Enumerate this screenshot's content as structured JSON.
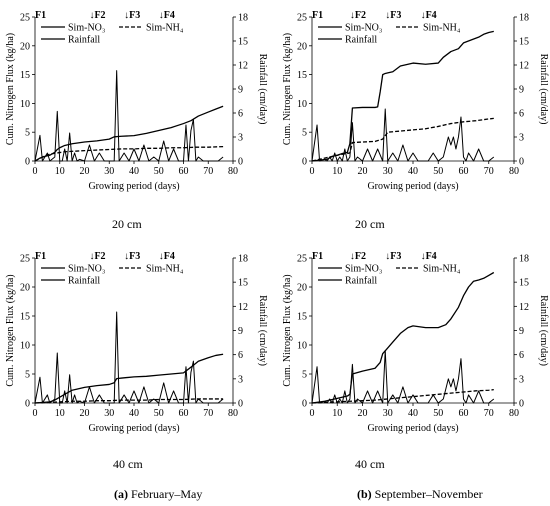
{
  "chart_data": [
    {
      "type": "line",
      "id": "a20",
      "caption": "20 cm",
      "xlabel": "Growing period (days)",
      "ylabel": "Cum. Nitrogen Flux (kg/ha)",
      "ylabel2": "Rainfall (cm/day)",
      "xlim": [
        0,
        80
      ],
      "ylim": [
        0,
        25
      ],
      "y2lim": [
        0,
        18
      ],
      "xticks": [
        0,
        10,
        20,
        30,
        40,
        50,
        60,
        70,
        80
      ],
      "yticks": [
        0,
        5,
        10,
        15,
        20,
        25
      ],
      "y2ticks": [
        0,
        3,
        6,
        9,
        12,
        15,
        18
      ],
      "fertilizer": [
        {
          "label": "F1",
          "x": 0,
          "arrow": ""
        },
        {
          "label": "F2",
          "x": 22,
          "arrow": "↓"
        },
        {
          "label": "F3",
          "x": 36,
          "arrow": "↓"
        },
        {
          "label": "F4",
          "x": 50,
          "arrow": "↓"
        }
      ],
      "legend": {
        "no3": "Sim-NO₃",
        "nh4": "Sim-NH₄",
        "rain": "Rainfall"
      },
      "series": [
        {
          "key": "no3",
          "axis": "left",
          "style": "solid",
          "x": [
            0,
            2,
            4,
            6,
            8,
            9,
            10,
            12,
            15,
            20,
            25,
            30,
            32,
            35,
            40,
            45,
            50,
            55,
            60,
            63,
            66,
            70,
            73,
            76
          ],
          "y": [
            0,
            0.5,
            0.8,
            1,
            1.5,
            2,
            2.3,
            2.7,
            3,
            3.3,
            3.5,
            3.8,
            4.2,
            4.3,
            4.4,
            4.8,
            5.3,
            5.8,
            6.5,
            7,
            7.8,
            8.5,
            9,
            9.5
          ]
        },
        {
          "key": "nh4",
          "axis": "left",
          "style": "dashed",
          "x": [
            0,
            3,
            6,
            9,
            12,
            16,
            20,
            25,
            30,
            35,
            40,
            45,
            50,
            55,
            60,
            65,
            70,
            76
          ],
          "y": [
            0,
            0.7,
            1.2,
            1.4,
            1.6,
            1.7,
            1.8,
            1.9,
            2,
            2.1,
            2.1,
            2.2,
            2.2,
            2.3,
            2.3,
            2.4,
            2.4,
            2.5
          ]
        },
        {
          "key": "rain",
          "axis": "right",
          "style": "solid",
          "x": [
            0,
            2,
            3,
            5,
            6,
            8,
            9,
            10,
            11,
            12,
            13,
            14,
            15,
            16,
            17,
            18,
            20,
            22,
            24,
            26,
            28,
            29,
            31,
            32,
            33,
            34,
            36,
            38,
            40,
            42,
            44,
            46,
            48,
            50,
            52,
            54,
            56,
            58,
            60,
            61,
            62,
            63,
            64,
            65,
            66,
            68,
            70,
            72,
            74,
            76
          ],
          "y": [
            0,
            3.2,
            0,
            1,
            0,
            0.5,
            6.2,
            0,
            0,
            1.5,
            0,
            3.5,
            0,
            1,
            0,
            0.2,
            0,
            2,
            0,
            1,
            0,
            0,
            0,
            0,
            11.3,
            0,
            1,
            0,
            1.5,
            0,
            2,
            0,
            0.5,
            0,
            2.5,
            0,
            1.5,
            0,
            0,
            4.5,
            0,
            3.8,
            5.2,
            0,
            0.5,
            0,
            0,
            0,
            0,
            0.5
          ]
        }
      ]
    },
    {
      "type": "line",
      "id": "b20",
      "caption": "20 cm",
      "xlabel": "Growing period (days)",
      "ylabel": "Cum. Nitrogen Flux (kg/ha)",
      "ylabel2": "Rainfall (cm/day)",
      "xlim": [
        0,
        80
      ],
      "ylim": [
        0,
        25
      ],
      "y2lim": [
        0,
        18
      ],
      "xticks": [
        0,
        10,
        20,
        30,
        40,
        50,
        60,
        70,
        80
      ],
      "yticks": [
        0,
        5,
        10,
        15,
        20,
        25
      ],
      "y2ticks": [
        0,
        3,
        6,
        9,
        12,
        15,
        18
      ],
      "fertilizer": [
        {
          "label": "F1",
          "x": 0,
          "arrow": ""
        },
        {
          "label": "F2",
          "x": 15,
          "arrow": "↓"
        },
        {
          "label": "F3",
          "x": 29,
          "arrow": "↓"
        },
        {
          "label": "F4",
          "x": 43,
          "arrow": "↓"
        }
      ],
      "legend": {
        "no3": "Sim-NO₃",
        "nh4": "Sim-NH₄",
        "rain": "Rainfall"
      },
      "series": [
        {
          "key": "no3",
          "axis": "left",
          "style": "solid",
          "x": [
            0,
            6,
            8,
            10,
            12,
            14,
            15,
            16,
            20,
            25,
            26,
            27,
            28,
            29,
            30,
            32,
            35,
            40,
            45,
            50,
            52,
            55,
            58,
            60,
            63,
            66,
            68,
            70,
            72
          ],
          "y": [
            0,
            0.3,
            0.8,
            1,
            1.3,
            1.5,
            3,
            9.2,
            9.3,
            9.3,
            9.4,
            12,
            15,
            15.2,
            15.3,
            15.5,
            16.5,
            17,
            16.8,
            17,
            18,
            19,
            19.5,
            20.5,
            21,
            21.5,
            22,
            22.3,
            22.5
          ]
        },
        {
          "key": "nh4",
          "axis": "left",
          "style": "dashed",
          "x": [
            0,
            5,
            10,
            15,
            16,
            20,
            25,
            28,
            30,
            35,
            40,
            45,
            50,
            55,
            60,
            65,
            70,
            72
          ],
          "y": [
            0,
            0.5,
            1,
            1.4,
            3.2,
            3.3,
            3.4,
            3.8,
            5,
            5.2,
            5.4,
            5.6,
            6,
            6.5,
            6.8,
            7,
            7.3,
            7.4
          ]
        },
        {
          "key": "rain",
          "axis": "right",
          "style": "solid",
          "x": [
            0,
            2,
            3,
            5,
            6,
            7,
            8,
            9,
            10,
            11,
            12,
            13,
            14,
            15,
            16,
            17,
            18,
            20,
            22,
            24,
            26,
            28,
            29,
            30,
            32,
            34,
            36,
            38,
            40,
            42,
            44,
            46,
            48,
            50,
            52,
            54,
            55,
            56,
            57,
            58,
            59,
            60,
            61,
            62,
            64,
            66,
            68,
            70,
            72
          ],
          "y": [
            0,
            4.5,
            0,
            0.2,
            0,
            0.5,
            0,
            1,
            0,
            0.5,
            0,
            1.5,
            0,
            0.5,
            4.8,
            0,
            0.5,
            0,
            1.5,
            0,
            1.5,
            0,
            6.5,
            0,
            1,
            0,
            2,
            0,
            1,
            0,
            0,
            0,
            1,
            0,
            0.5,
            3,
            2,
            3,
            1.5,
            3,
            5.5,
            0.5,
            0,
            1,
            0,
            1.5,
            0,
            0,
            0.5
          ]
        }
      ]
    },
    {
      "type": "line",
      "id": "a40",
      "caption": "40 cm",
      "xlabel": "Growing period (days)",
      "ylabel": "Cum. Nitrogen Flux (kg/ha)",
      "ylabel2": "Rainfall (cm/day)",
      "xlim": [
        0,
        80
      ],
      "ylim": [
        0,
        25
      ],
      "y2lim": [
        0,
        18
      ],
      "xticks": [
        0,
        10,
        20,
        30,
        40,
        50,
        60,
        70,
        80
      ],
      "yticks": [
        0,
        5,
        10,
        15,
        20,
        25
      ],
      "y2ticks": [
        0,
        3,
        6,
        9,
        12,
        15,
        18
      ],
      "fertilizer": [
        {
          "label": "F1",
          "x": 0,
          "arrow": ""
        },
        {
          "label": "F2",
          "x": 22,
          "arrow": "↓"
        },
        {
          "label": "F3",
          "x": 36,
          "arrow": "↓"
        },
        {
          "label": "F4",
          "x": 50,
          "arrow": "↓"
        }
      ],
      "legend": {
        "no3": "Sim-NO₃",
        "nh4": "Sim-NH₄",
        "rain": "Rainfall"
      },
      "series": [
        {
          "key": "no3",
          "axis": "left",
          "style": "solid",
          "x": [
            0,
            6,
            8,
            10,
            12,
            15,
            20,
            25,
            30,
            32,
            33,
            35,
            40,
            45,
            50,
            55,
            60,
            64,
            66,
            70,
            73,
            76
          ],
          "y": [
            0,
            0.2,
            0.5,
            1,
            1.5,
            2.2,
            2.7,
            3,
            3.2,
            3.5,
            4.2,
            4.3,
            4.5,
            4.6,
            4.8,
            5,
            5.2,
            6.5,
            7.2,
            7.8,
            8.2,
            8.4
          ]
        },
        {
          "key": "nh4",
          "axis": "left",
          "style": "dashed",
          "x": [
            0,
            5,
            10,
            15,
            20,
            25,
            30,
            35,
            40,
            45,
            50,
            55,
            60,
            65,
            70,
            76
          ],
          "y": [
            0,
            0.1,
            0.2,
            0.3,
            0.3,
            0.4,
            0.4,
            0.5,
            0.5,
            0.5,
            0.6,
            0.6,
            0.6,
            0.7,
            0.7,
            0.7
          ]
        },
        {
          "key": "rain",
          "axis": "right",
          "style": "solid",
          "x": [
            0,
            2,
            3,
            5,
            6,
            8,
            9,
            10,
            11,
            12,
            13,
            14,
            15,
            16,
            17,
            18,
            20,
            22,
            24,
            26,
            28,
            29,
            31,
            32,
            33,
            34,
            36,
            38,
            40,
            42,
            44,
            46,
            48,
            50,
            52,
            54,
            56,
            58,
            60,
            61,
            62,
            63,
            64,
            65,
            66,
            68,
            70,
            72,
            74,
            76
          ],
          "y": [
            0,
            3.2,
            0,
            1,
            0,
            0.5,
            6.2,
            0,
            0,
            1.5,
            0,
            3.5,
            0,
            1,
            0,
            0.2,
            0,
            2,
            0,
            1,
            0,
            0,
            0,
            0,
            11.3,
            0,
            1,
            0,
            1.5,
            0,
            2,
            0,
            0.5,
            0,
            2.5,
            0,
            1.5,
            0,
            0,
            4.5,
            0,
            3.8,
            5.2,
            0,
            0.5,
            0,
            0,
            0,
            0,
            0.5
          ]
        }
      ]
    },
    {
      "type": "line",
      "id": "b40",
      "caption": "40 cm",
      "xlabel": "Growing period (days)",
      "ylabel": "Cum. Nitrogen Flux (kg/ha)",
      "ylabel2": "Rainfall (cm/day)",
      "xlim": [
        0,
        80
      ],
      "ylim": [
        0,
        25
      ],
      "y2lim": [
        0,
        18
      ],
      "xticks": [
        0,
        10,
        20,
        30,
        40,
        50,
        60,
        70,
        80
      ],
      "yticks": [
        0,
        5,
        10,
        15,
        20,
        25
      ],
      "y2ticks": [
        0,
        3,
        6,
        9,
        12,
        15,
        18
      ],
      "fertilizer": [
        {
          "label": "F1",
          "x": 0,
          "arrow": ""
        },
        {
          "label": "F2",
          "x": 15,
          "arrow": "↓"
        },
        {
          "label": "F3",
          "x": 29,
          "arrow": "↓"
        },
        {
          "label": "F4",
          "x": 43,
          "arrow": "↓"
        }
      ],
      "legend": {
        "no3": "Sim-NO₃",
        "nh4": "Sim-NH₄",
        "rain": "Rainfall"
      },
      "series": [
        {
          "key": "no3",
          "axis": "left",
          "style": "solid",
          "x": [
            0,
            5,
            10,
            14,
            15,
            16,
            20,
            25,
            27,
            28,
            29,
            30,
            32,
            35,
            38,
            40,
            45,
            50,
            53,
            55,
            58,
            60,
            62,
            64,
            66,
            68,
            70,
            72
          ],
          "y": [
            0,
            0.3,
            0.8,
            1.2,
            1.5,
            5,
            5.5,
            6,
            7,
            8.5,
            9,
            9.5,
            10.5,
            12,
            13,
            13.3,
            13,
            13,
            13.5,
            14.5,
            16.5,
            18.5,
            20,
            21,
            21.2,
            21.5,
            22,
            22.5
          ]
        },
        {
          "key": "nh4",
          "axis": "left",
          "style": "dashed",
          "x": [
            0,
            5,
            10,
            15,
            20,
            25,
            30,
            35,
            40,
            45,
            50,
            55,
            60,
            65,
            70,
            72
          ],
          "y": [
            0,
            0.1,
            0.2,
            0.3,
            0.4,
            0.5,
            0.7,
            0.9,
            1.1,
            1.3,
            1.5,
            1.7,
            1.9,
            2.1,
            2.2,
            2.3
          ]
        },
        {
          "key": "rain",
          "axis": "right",
          "style": "solid",
          "x": [
            0,
            2,
            3,
            5,
            6,
            7,
            8,
            9,
            10,
            11,
            12,
            13,
            14,
            15,
            16,
            17,
            18,
            20,
            22,
            24,
            26,
            28,
            29,
            30,
            32,
            34,
            36,
            38,
            40,
            42,
            44,
            46,
            48,
            50,
            52,
            54,
            55,
            56,
            57,
            58,
            59,
            60,
            61,
            62,
            64,
            66,
            68,
            70,
            72
          ],
          "y": [
            0,
            4.5,
            0,
            0.2,
            0,
            0.5,
            0,
            1,
            0,
            0.5,
            0,
            1.5,
            0,
            0.5,
            4.8,
            0,
            0.5,
            0,
            1.5,
            0,
            1.5,
            0,
            6.5,
            0,
            1,
            0,
            2,
            0,
            1,
            0,
            0,
            0,
            1,
            0,
            0.5,
            3,
            2,
            3,
            1.5,
            3,
            5.5,
            0.5,
            0,
            1,
            0,
            1.5,
            0,
            0,
            0.5
          ]
        }
      ]
    }
  ],
  "captions": {
    "a_tag": "(a)",
    "a_text": " February–May",
    "b_tag": "(b)",
    "b_text": " September–November"
  }
}
